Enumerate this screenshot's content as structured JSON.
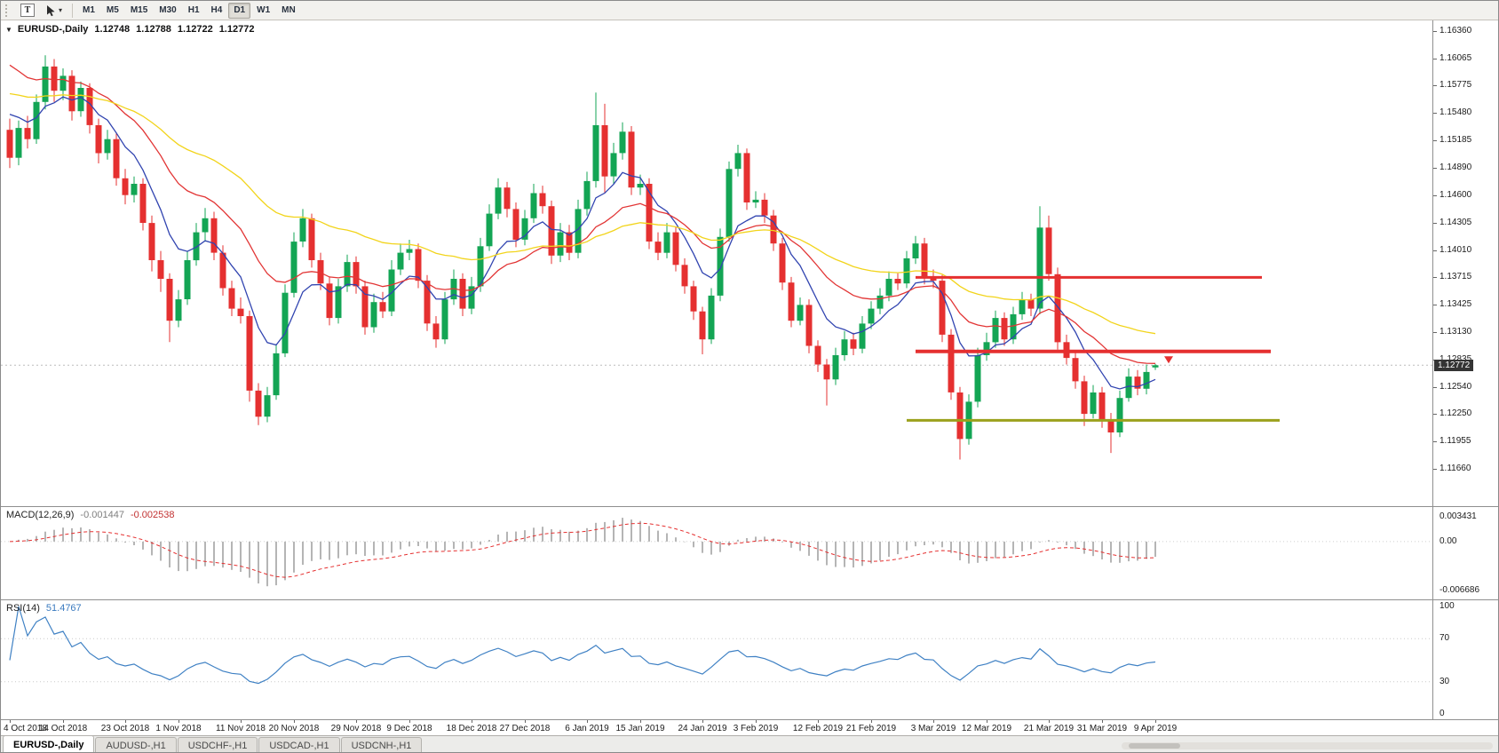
{
  "toolbar": {
    "templates_icon_label": "T",
    "dropdown_caret": "▾",
    "timeframes": [
      {
        "label": "M1",
        "active": false
      },
      {
        "label": "M5",
        "active": false
      },
      {
        "label": "M15",
        "active": false
      },
      {
        "label": "M30",
        "active": false
      },
      {
        "label": "H1",
        "active": false
      },
      {
        "label": "H4",
        "active": false
      },
      {
        "label": "D1",
        "active": true
      },
      {
        "label": "W1",
        "active": false
      },
      {
        "label": "MN",
        "active": false
      }
    ]
  },
  "chart": {
    "symbol_marker": "▼",
    "title": "EURUSD-,Daily",
    "ohlc": {
      "open": "1.12748",
      "high": "1.12788",
      "low": "1.12722",
      "close": "1.12772"
    },
    "bid_badge": "1.12772",
    "price_axis_labels": [
      "1.16360",
      "1.16065",
      "1.15775",
      "1.15480",
      "1.15185",
      "1.14890",
      "1.14600",
      "1.14305",
      "1.14010",
      "1.13715",
      "1.13425",
      "1.13130",
      "1.12835",
      "1.12540",
      "1.12250",
      "1.11955",
      "1.11660"
    ]
  },
  "indicators": {
    "macd": {
      "label": "MACD(12,26,9)",
      "value_main": "-0.001447",
      "value_signal": "-0.002538",
      "axis_labels": [
        "0.003431",
        "0.00",
        "-0.006686"
      ],
      "axis_values": [
        0.003431,
        0,
        -0.006686
      ]
    },
    "rsi": {
      "label": "RSI(14)",
      "value": "51.4767",
      "axis_labels": [
        "100",
        "70",
        "30",
        "0"
      ],
      "axis_values": [
        100,
        70,
        30,
        0
      ]
    }
  },
  "tabs": [
    {
      "label": "EURUSD-,Daily",
      "active": true
    },
    {
      "label": "AUDUSD-,H1",
      "active": false
    },
    {
      "label": "USDCHF-,H1",
      "active": false
    },
    {
      "label": "USDCAD-,H1",
      "active": false
    },
    {
      "label": "USDCNH-,H1",
      "active": false
    }
  ],
  "chart_data": {
    "type": "candlestick",
    "symbol": "EURUSD-",
    "timeframe": "Daily",
    "price_range": [
      1.11259,
      1.16475
    ],
    "x_labels": [
      "4 Oct 2018",
      "14 Oct 2018",
      "23 Oct 2018",
      "1 Nov 2018",
      "11 Nov 2018",
      "20 Nov 2018",
      "29 Nov 2018",
      "9 Dec 2018",
      "18 Dec 2018",
      "27 Dec 2018",
      "6 Jan 2019",
      "15 Jan 2019",
      "24 Jan 2019",
      "3 Feb 2019",
      "12 Feb 2019",
      "21 Feb 2019",
      "3 Mar 2019",
      "12 Mar 2019",
      "21 Mar 2019",
      "31 Mar 2019",
      "9 Apr 2019"
    ],
    "x_label_indices": [
      0,
      6,
      13,
      19,
      26,
      32,
      39,
      45,
      52,
      58,
      65,
      71,
      78,
      84,
      91,
      97,
      104,
      110,
      117,
      123,
      129
    ],
    "colors": {
      "up": "#13a554",
      "down": "#e53030",
      "macd_histogram": "#b5b5b5",
      "macd_signal": "#e53030",
      "rsi_line": "#3f81c4",
      "bid": "#bcbcbc"
    },
    "moving_averages": [
      {
        "name": "fast-ma",
        "period": 8,
        "seed": 1.156,
        "color": "#3144b0"
      },
      {
        "name": "medium-ma",
        "period": 20,
        "seed": 1.161,
        "color": "#e23535"
      },
      {
        "name": "slow-ma",
        "period": 45,
        "seed": 1.1572,
        "color": "#f2d41b"
      }
    ],
    "horizontal_lines": [
      {
        "name": "resistance-upper",
        "price": 1.13715,
        "span": [
          102,
          141
        ],
        "color": "#e53030",
        "width": 3
      },
      {
        "name": "resistance-lower",
        "price": 1.1292,
        "span": [
          102,
          142
        ],
        "color": "#e53030",
        "width": 4
      },
      {
        "name": "support",
        "price": 1.1218,
        "span": [
          101,
          143
        ],
        "color": "#9ba11c",
        "width": 3
      }
    ],
    "bid_line": {
      "price": 1.12772
    },
    "macd": {
      "fast": 12,
      "slow": 26,
      "signal_period": 9,
      "display_range": [
        -0.0072,
        0.004
      ]
    },
    "rsi": {
      "period": 14,
      "levels": [
        70,
        30
      ]
    },
    "candles_ohlc": [
      [
        1.153,
        1.1542,
        1.1489,
        1.15
      ],
      [
        1.15,
        1.154,
        1.1492,
        1.1532
      ],
      [
        1.1532,
        1.1545,
        1.151,
        1.152
      ],
      [
        1.152,
        1.1568,
        1.1515,
        1.156
      ],
      [
        1.156,
        1.161,
        1.1552,
        1.1598
      ],
      [
        1.1598,
        1.1606,
        1.156,
        1.1572
      ],
      [
        1.1572,
        1.1596,
        1.1562,
        1.1588
      ],
      [
        1.1588,
        1.1594,
        1.154,
        1.155
      ],
      [
        1.155,
        1.1582,
        1.1544,
        1.1575
      ],
      [
        1.1575,
        1.158,
        1.1526,
        1.1535
      ],
      [
        1.1535,
        1.1542,
        1.1494,
        1.1505
      ],
      [
        1.1505,
        1.153,
        1.1498,
        1.152
      ],
      [
        1.152,
        1.1526,
        1.147,
        1.1478
      ],
      [
        1.1478,
        1.1488,
        1.145,
        1.146
      ],
      [
        1.146,
        1.148,
        1.1452,
        1.1472
      ],
      [
        1.1472,
        1.1478,
        1.1422,
        1.143
      ],
      [
        1.143,
        1.1438,
        1.1378,
        1.139
      ],
      [
        1.139,
        1.14,
        1.1356,
        1.137
      ],
      [
        1.137,
        1.1376,
        1.1302,
        1.1325
      ],
      [
        1.1325,
        1.1358,
        1.1318,
        1.1348
      ],
      [
        1.1348,
        1.14,
        1.1342,
        1.139
      ],
      [
        1.139,
        1.143,
        1.1384,
        1.142
      ],
      [
        1.142,
        1.1446,
        1.141,
        1.1435
      ],
      [
        1.1435,
        1.1442,
        1.139,
        1.1398
      ],
      [
        1.1398,
        1.1406,
        1.1352,
        1.136
      ],
      [
        1.136,
        1.1368,
        1.133,
        1.1338
      ],
      [
        1.1338,
        1.135,
        1.1322,
        1.133
      ],
      [
        1.133,
        1.1336,
        1.1238,
        1.125
      ],
      [
        1.125,
        1.1258,
        1.1213,
        1.1222
      ],
      [
        1.1222,
        1.1254,
        1.1216,
        1.1245
      ],
      [
        1.1245,
        1.13,
        1.124,
        1.129
      ],
      [
        1.129,
        1.1364,
        1.1286,
        1.1355
      ],
      [
        1.1355,
        1.142,
        1.135,
        1.141
      ],
      [
        1.141,
        1.1445,
        1.1404,
        1.1435
      ],
      [
        1.1435,
        1.144,
        1.1382,
        1.139
      ],
      [
        1.139,
        1.1398,
        1.1358,
        1.1365
      ],
      [
        1.1365,
        1.1372,
        1.132,
        1.1328
      ],
      [
        1.1328,
        1.137,
        1.1322,
        1.1362
      ],
      [
        1.1362,
        1.1396,
        1.1356,
        1.1388
      ],
      [
        1.1388,
        1.1394,
        1.1354,
        1.1362
      ],
      [
        1.1362,
        1.1368,
        1.131,
        1.1318
      ],
      [
        1.1318,
        1.1354,
        1.1312,
        1.1345
      ],
      [
        1.1345,
        1.1356,
        1.1328,
        1.1335
      ],
      [
        1.1335,
        1.139,
        1.133,
        1.138
      ],
      [
        1.138,
        1.1408,
        1.1374,
        1.1398
      ],
      [
        1.1398,
        1.1412,
        1.139,
        1.1402
      ],
      [
        1.1402,
        1.1408,
        1.136,
        1.1368
      ],
      [
        1.1368,
        1.1374,
        1.1314,
        1.1322
      ],
      [
        1.1322,
        1.133,
        1.1296,
        1.1305
      ],
      [
        1.1305,
        1.1356,
        1.13,
        1.1348
      ],
      [
        1.1348,
        1.138,
        1.1342,
        1.137
      ],
      [
        1.137,
        1.1376,
        1.133,
        1.1338
      ],
      [
        1.1338,
        1.1372,
        1.1332,
        1.1362
      ],
      [
        1.1362,
        1.1414,
        1.1356,
        1.1405
      ],
      [
        1.1405,
        1.145,
        1.14,
        1.144
      ],
      [
        1.144,
        1.1478,
        1.1434,
        1.1468
      ],
      [
        1.1468,
        1.1474,
        1.1436,
        1.1445
      ],
      [
        1.1445,
        1.1452,
        1.1404,
        1.1412
      ],
      [
        1.1412,
        1.1444,
        1.1406,
        1.1435
      ],
      [
        1.1435,
        1.1472,
        1.143,
        1.1462
      ],
      [
        1.1462,
        1.147,
        1.144,
        1.1448
      ],
      [
        1.1448,
        1.1454,
        1.1386,
        1.1395
      ],
      [
        1.1395,
        1.143,
        1.1388,
        1.142
      ],
      [
        1.142,
        1.1428,
        1.139,
        1.1398
      ],
      [
        1.1398,
        1.1455,
        1.1392,
        1.1445
      ],
      [
        1.1445,
        1.1485,
        1.1438,
        1.1475
      ],
      [
        1.1475,
        1.157,
        1.1468,
        1.1535
      ],
      [
        1.1535,
        1.1558,
        1.1462,
        1.148
      ],
      [
        1.148,
        1.1516,
        1.1472,
        1.1505
      ],
      [
        1.1505,
        1.1538,
        1.1498,
        1.1528
      ],
      [
        1.1528,
        1.1534,
        1.146,
        1.1468
      ],
      [
        1.1468,
        1.1482,
        1.146,
        1.1472
      ],
      [
        1.1472,
        1.1478,
        1.1402,
        1.141
      ],
      [
        1.141,
        1.142,
        1.139,
        1.1398
      ],
      [
        1.1398,
        1.143,
        1.1392,
        1.142
      ],
      [
        1.142,
        1.1426,
        1.1378,
        1.1385
      ],
      [
        1.1385,
        1.1392,
        1.1354,
        1.1362
      ],
      [
        1.1362,
        1.1368,
        1.1326,
        1.1335
      ],
      [
        1.1335,
        1.134,
        1.1289,
        1.1305
      ],
      [
        1.1305,
        1.136,
        1.13,
        1.1352
      ],
      [
        1.1352,
        1.1424,
        1.1346,
        1.1415
      ],
      [
        1.1415,
        1.1496,
        1.141,
        1.1488
      ],
      [
        1.1488,
        1.1514,
        1.148,
        1.1505
      ],
      [
        1.1505,
        1.151,
        1.1444,
        1.1452
      ],
      [
        1.1452,
        1.1464,
        1.1446,
        1.1455
      ],
      [
        1.1455,
        1.1462,
        1.143,
        1.1438
      ],
      [
        1.1438,
        1.1444,
        1.14,
        1.1408
      ],
      [
        1.1408,
        1.1414,
        1.1358,
        1.1366
      ],
      [
        1.1366,
        1.1372,
        1.1318,
        1.1325
      ],
      [
        1.1325,
        1.135,
        1.132,
        1.1342
      ],
      [
        1.1342,
        1.1348,
        1.129,
        1.1298
      ],
      [
        1.1298,
        1.1304,
        1.127,
        1.1278
      ],
      [
        1.1278,
        1.1284,
        1.1234,
        1.1262
      ],
      [
        1.1262,
        1.1296,
        1.1256,
        1.1288
      ],
      [
        1.1288,
        1.1314,
        1.1282,
        1.1305
      ],
      [
        1.1305,
        1.1312,
        1.1288,
        1.1295
      ],
      [
        1.1295,
        1.133,
        1.129,
        1.1322
      ],
      [
        1.1322,
        1.1346,
        1.1316,
        1.1338
      ],
      [
        1.1338,
        1.136,
        1.1332,
        1.1352
      ],
      [
        1.1352,
        1.1378,
        1.1346,
        1.137
      ],
      [
        1.137,
        1.1376,
        1.1358,
        1.1365
      ],
      [
        1.1365,
        1.14,
        1.136,
        1.1392
      ],
      [
        1.1392,
        1.1416,
        1.1386,
        1.1408
      ],
      [
        1.1408,
        1.1414,
        1.1364,
        1.1372
      ],
      [
        1.1372,
        1.138,
        1.136,
        1.1368
      ],
      [
        1.1368,
        1.1374,
        1.1302,
        1.131
      ],
      [
        1.131,
        1.1316,
        1.124,
        1.1248
      ],
      [
        1.1248,
        1.1254,
        1.1176,
        1.1198
      ],
      [
        1.1198,
        1.1246,
        1.1192,
        1.1238
      ],
      [
        1.1238,
        1.1296,
        1.1232,
        1.1288
      ],
      [
        1.1288,
        1.1312,
        1.1282,
        1.1302
      ],
      [
        1.1302,
        1.1336,
        1.1296,
        1.1328
      ],
      [
        1.1328,
        1.1334,
        1.1298,
        1.1305
      ],
      [
        1.1305,
        1.134,
        1.13,
        1.1332
      ],
      [
        1.1332,
        1.1356,
        1.1326,
        1.1348
      ],
      [
        1.1348,
        1.1354,
        1.133,
        1.1338
      ],
      [
        1.1338,
        1.1448,
        1.1332,
        1.1425
      ],
      [
        1.1425,
        1.1438,
        1.1368,
        1.1375
      ],
      [
        1.1375,
        1.1382,
        1.1294,
        1.1302
      ],
      [
        1.1302,
        1.131,
        1.1278,
        1.1285
      ],
      [
        1.1285,
        1.1292,
        1.1252,
        1.126
      ],
      [
        1.126,
        1.1266,
        1.1212,
        1.1225
      ],
      [
        1.1225,
        1.1256,
        1.122,
        1.1248
      ],
      [
        1.1248,
        1.1254,
        1.121,
        1.1218
      ],
      [
        1.1218,
        1.1226,
        1.1183,
        1.1205
      ],
      [
        1.1205,
        1.125,
        1.12,
        1.1242
      ],
      [
        1.1242,
        1.1274,
        1.1238,
        1.1265
      ],
      [
        1.1265,
        1.1272,
        1.1245,
        1.1252
      ],
      [
        1.1252,
        1.1278,
        1.1246,
        1.127
      ],
      [
        1.12748,
        1.12788,
        1.12722,
        1.12772
      ]
    ]
  }
}
